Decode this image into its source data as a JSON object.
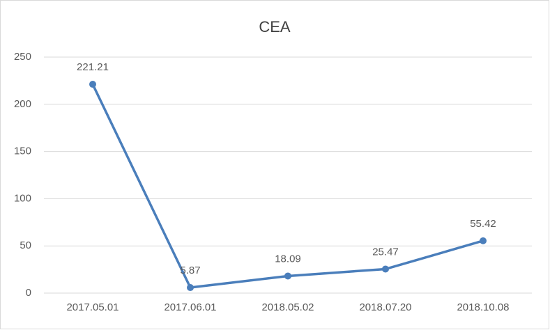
{
  "chart_data": {
    "type": "line",
    "title": "CEA",
    "categories": [
      "2017.05.01",
      "2017.06.01",
      "2018.05.02",
      "2018.07.20",
      "2018.10.08"
    ],
    "values": [
      221.21,
      5.87,
      18.09,
      25.47,
      55.42
    ],
    "color": "#4a7ebb",
    "ylim": [
      0,
      250
    ],
    "yticks": [
      0,
      50,
      100,
      150,
      200,
      250
    ],
    "grid": true
  }
}
